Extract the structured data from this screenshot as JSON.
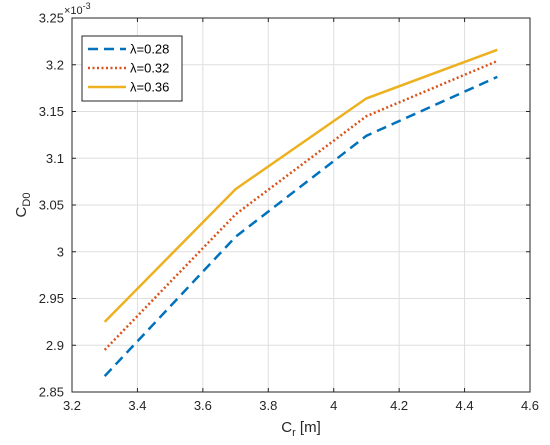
{
  "chart_data": {
    "type": "line",
    "title": "",
    "xlabel": "C",
    "xlabel_sub": "r",
    "xlabel_unit": " [m]",
    "ylabel": "C",
    "ylabel_sub": "D0",
    "y_multiplier": "×10",
    "y_exponent": "-3",
    "xlim": [
      3.2,
      4.6
    ],
    "ylim": [
      2.85,
      3.25
    ],
    "xticks": [
      3.2,
      3.4,
      3.6,
      3.8,
      4.0,
      4.2,
      4.4,
      4.6
    ],
    "xtick_labels": [
      "3.2",
      "3.4",
      "3.6",
      "3.8",
      "4",
      "4.2",
      "4.4",
      "4.6"
    ],
    "yticks": [
      2.85,
      2.9,
      2.95,
      3.0,
      3.05,
      3.1,
      3.15,
      3.2,
      3.25
    ],
    "ytick_labels": [
      "2.85",
      "2.9",
      "2.95",
      "3",
      "3.05",
      "3.1",
      "3.15",
      "3.2",
      "3.25"
    ],
    "grid": true,
    "legend_position": "top-left",
    "x": [
      3.3,
      3.7,
      4.1,
      4.5
    ],
    "series": [
      {
        "name": "λ=0.28",
        "values": [
          2.867,
          3.016,
          3.124,
          3.187
        ],
        "color": "#0072BD",
        "style": "dashed"
      },
      {
        "name": "λ=0.32",
        "values": [
          2.895,
          3.04,
          3.145,
          3.204
        ],
        "color": "#D95319",
        "style": "dotted"
      },
      {
        "name": "λ=0.36",
        "values": [
          2.925,
          3.067,
          3.164,
          3.216
        ],
        "color": "#EDB120",
        "style": "solid"
      }
    ]
  }
}
